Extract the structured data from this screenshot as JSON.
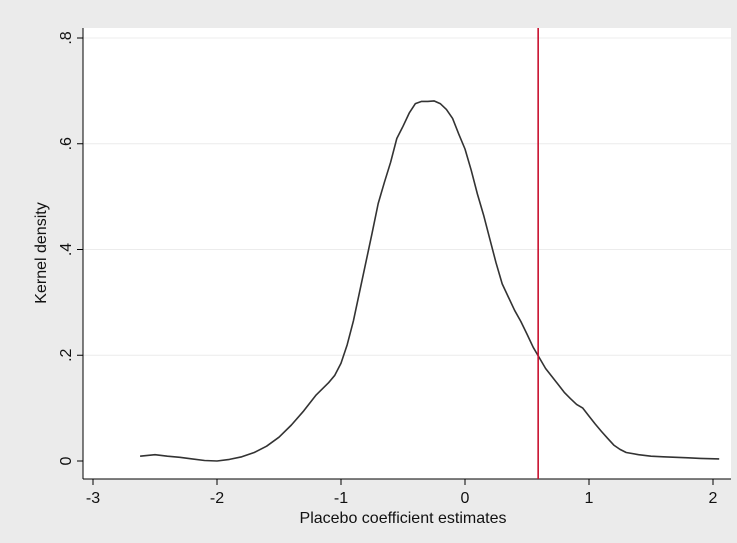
{
  "chart_data": {
    "type": "line",
    "xlabel": "Placebo coefficient estimates",
    "ylabel": "Kernel density",
    "xlim": [
      -3,
      2
    ],
    "ylim": [
      0,
      0.8
    ],
    "x_ticks": [
      {
        "value": -3,
        "label": "-3"
      },
      {
        "value": -2,
        "label": "-2"
      },
      {
        "value": -1,
        "label": "-1"
      },
      {
        "value": 0,
        "label": "0"
      },
      {
        "value": 1,
        "label": "1"
      },
      {
        "value": 2,
        "label": "2"
      }
    ],
    "y_ticks": [
      {
        "value": 0,
        "label": "0"
      },
      {
        "value": 0.2,
        "label": ".2"
      },
      {
        "value": 0.4,
        "label": ".4"
      },
      {
        "value": 0.6,
        "label": ".6"
      },
      {
        "value": 0.8,
        "label": ".8"
      }
    ],
    "grid": "horizontal",
    "series": [
      {
        "color": "#333333",
        "x": [
          -2.62,
          -2.5,
          -2.4,
          -2.3,
          -2.2,
          -2.1,
          -2.0,
          -1.9,
          -1.8,
          -1.7,
          -1.6,
          -1.5,
          -1.4,
          -1.3,
          -1.2,
          -1.1,
          -1.05,
          -1.0,
          -0.95,
          -0.9,
          -0.85,
          -0.8,
          -0.75,
          -0.7,
          -0.65,
          -0.6,
          -0.55,
          -0.5,
          -0.45,
          -0.4,
          -0.35,
          -0.3,
          -0.25,
          -0.2,
          -0.15,
          -0.1,
          -0.05,
          0.0,
          0.05,
          0.1,
          0.15,
          0.2,
          0.25,
          0.3,
          0.35,
          0.4,
          0.45,
          0.5,
          0.55,
          0.6,
          0.65,
          0.7,
          0.75,
          0.8,
          0.85,
          0.9,
          0.95,
          1.0,
          1.05,
          1.1,
          1.15,
          1.2,
          1.25,
          1.3,
          1.4,
          1.5,
          1.6,
          1.7,
          1.8,
          1.9,
          2.05
        ],
        "y": [
          0.009,
          0.012,
          0.009,
          0.007,
          0.004,
          0.001,
          0.0,
          0.003,
          0.008,
          0.016,
          0.028,
          0.045,
          0.068,
          0.095,
          0.125,
          0.148,
          0.162,
          0.185,
          0.22,
          0.265,
          0.32,
          0.375,
          0.43,
          0.487,
          0.527,
          0.565,
          0.61,
          0.633,
          0.658,
          0.676,
          0.68,
          0.68,
          0.681,
          0.676,
          0.665,
          0.648,
          0.618,
          0.59,
          0.55,
          0.505,
          0.465,
          0.42,
          0.375,
          0.335,
          0.31,
          0.285,
          0.264,
          0.24,
          0.215,
          0.195,
          0.175,
          0.16,
          0.145,
          0.13,
          0.118,
          0.107,
          0.1,
          0.085,
          0.07,
          0.056,
          0.043,
          0.03,
          0.022,
          0.016,
          0.012,
          0.009,
          0.008,
          0.007,
          0.006,
          0.005,
          0.004
        ]
      }
    ],
    "reference_lines": [
      {
        "axis": "x",
        "value": 0.59,
        "color": "#c8102e"
      }
    ]
  }
}
